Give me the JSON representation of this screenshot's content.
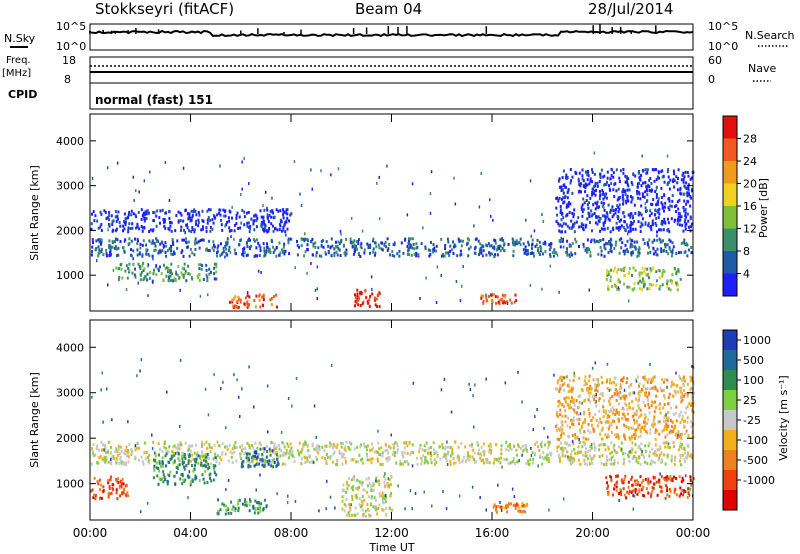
{
  "header": {
    "station": "Stokkseyri (fitACF)",
    "beam": "Beam 04",
    "date": "28/Jul/2014"
  },
  "top_panels": {
    "nsky_label": "N.Sky",
    "nsky_ticks": [
      "10^5",
      "10^0"
    ],
    "nsearch_label": "N.Search",
    "nsearch_ticks": [
      "10^5",
      "10^0"
    ],
    "freq_label": "Freq.",
    "freq_unit": "[MHz]",
    "freq_ticks": [
      "18",
      "8"
    ],
    "nave_label": "Nave",
    "nave_ticks": [
      "60",
      "0"
    ],
    "cpid_label": "CPID",
    "cpid_text": "normal (fast) 151"
  },
  "chart_data": [
    {
      "type": "heatmap",
      "name": "power",
      "ylabel": "Slant Range [km]",
      "xlabel": "Time UT",
      "ylim": [
        200,
        4600
      ],
      "yticks": [
        "1000",
        "2000",
        "3000",
        "4000"
      ],
      "xticks": [
        "00:00",
        "04:00",
        "08:00",
        "12:00",
        "16:00",
        "20:00",
        "00:00"
      ],
      "colorbar_label": "Power [dB]",
      "colorbar_ticks": [
        "4",
        "8",
        "12",
        "16",
        "20",
        "24",
        "28"
      ],
      "colorbar_colors": [
        "#1e1eff",
        "#1f5aa8",
        "#3a8f6a",
        "#7fc03a",
        "#f0d020",
        "#f09a20",
        "#f05a20",
        "#e01010"
      ],
      "features": [
        {
          "t": [
            0.0,
            24.0
          ],
          "r": [
            1450,
            1850
          ],
          "level": 1
        },
        {
          "t": [
            0.0,
            8.0
          ],
          "r": [
            2000,
            2500
          ],
          "level": 0
        },
        {
          "t": [
            1.0,
            5.0
          ],
          "r": [
            900,
            1300
          ],
          "level": 2
        },
        {
          "t": [
            5.5,
            7.5
          ],
          "r": [
            300,
            600
          ],
          "level": 6
        },
        {
          "t": [
            10.5,
            11.5
          ],
          "r": [
            300,
            700
          ],
          "level": 7
        },
        {
          "t": [
            15.5,
            17.0
          ],
          "r": [
            400,
            600
          ],
          "level": 6
        },
        {
          "t": [
            18.5,
            24.0
          ],
          "r": [
            2000,
            3400
          ],
          "level": 0
        },
        {
          "t": [
            20.5,
            23.5
          ],
          "r": [
            700,
            1200
          ],
          "level": 3
        }
      ]
    },
    {
      "type": "heatmap",
      "name": "velocity",
      "ylabel": "Slant Range [km]",
      "xlabel": "Time UT",
      "ylim": [
        200,
        4600
      ],
      "yticks": [
        "1000",
        "2000",
        "3000",
        "4000"
      ],
      "xticks": [
        "00:00",
        "04:00",
        "08:00",
        "12:00",
        "16:00",
        "20:00",
        "00:00"
      ],
      "colorbar_label": "Velocity [m s⁻¹]",
      "colorbar_ticks": [
        "1000",
        "500",
        "100",
        "25",
        "-25",
        "-100",
        "-500",
        "-1000"
      ],
      "colorbar_colors": [
        "#1e3cb4",
        "#1f6a9a",
        "#2e8c50",
        "#7ed040",
        "#c8c8c8",
        "#f0b020",
        "#f08020",
        "#f04010",
        "#e00000"
      ],
      "features": [
        {
          "t": [
            0.0,
            24.0
          ],
          "r": [
            1450,
            1950
          ],
          "level": 4
        },
        {
          "t": [
            0.0,
            1.5
          ],
          "r": [
            700,
            1200
          ],
          "level": 7
        },
        {
          "t": [
            2.5,
            5.0
          ],
          "r": [
            1000,
            1700
          ],
          "level": 2
        },
        {
          "t": [
            6.0,
            7.5
          ],
          "r": [
            1400,
            1800
          ],
          "level": 1
        },
        {
          "t": [
            5.0,
            7.0
          ],
          "r": [
            350,
            700
          ],
          "level": 2
        },
        {
          "t": [
            10.0,
            12.0
          ],
          "r": [
            300,
            1200
          ],
          "level": 4
        },
        {
          "t": [
            16.0,
            17.5
          ],
          "r": [
            400,
            600
          ],
          "level": 6
        },
        {
          "t": [
            20.5,
            24.0
          ],
          "r": [
            700,
            1200
          ],
          "level": 7
        },
        {
          "t": [
            18.5,
            24.0
          ],
          "r": [
            2000,
            3400
          ],
          "level": 5
        }
      ]
    }
  ]
}
